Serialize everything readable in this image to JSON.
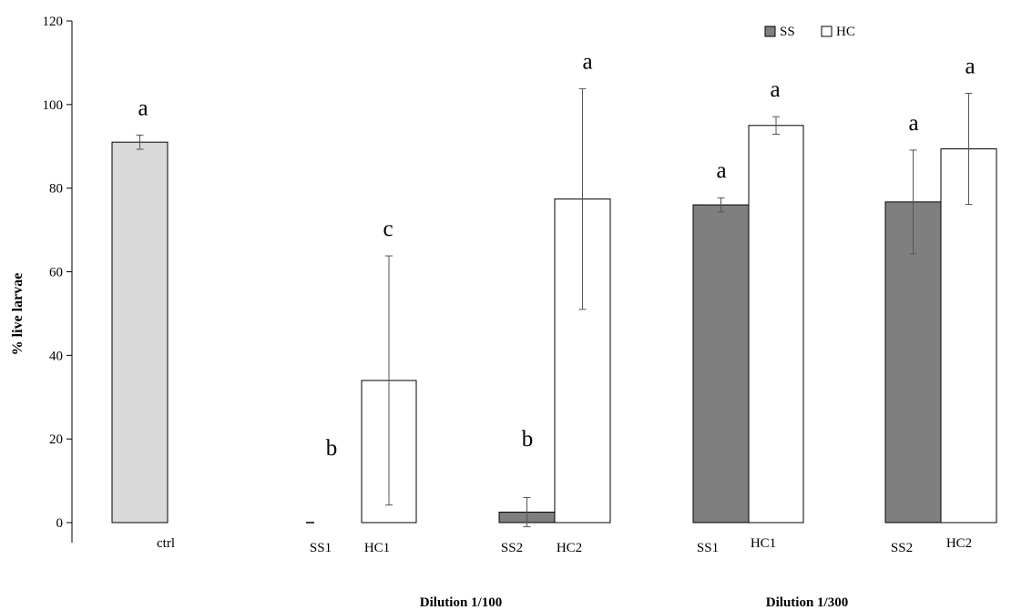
{
  "chart_data": {
    "type": "bar",
    "ylabel": "% live larvae",
    "ylim": [
      0,
      120
    ],
    "yticks": [
      0,
      20,
      40,
      60,
      80,
      100,
      120
    ],
    "legend": {
      "placement": "top-right",
      "entries": [
        {
          "name": "SS",
          "color": "#7f7f7f"
        },
        {
          "name": "HC",
          "color": "#ffffff"
        }
      ]
    },
    "bars": [
      {
        "label": "ctrl",
        "series": "ctrl",
        "value": 91,
        "err": 1.7,
        "letter": "a",
        "color": "#d9d9d9"
      },
      {
        "label": "SS1",
        "series": "SS",
        "value": 0,
        "err": 0,
        "letter": "b",
        "color": "#7f7f7f"
      },
      {
        "label": "HC1",
        "series": "HC",
        "value": 34,
        "err": 29.8,
        "letter": "c",
        "color": "#ffffff"
      },
      {
        "label": "SS2",
        "series": "SS",
        "value": 2.5,
        "err": 3.5,
        "letter": "b",
        "color": "#7f7f7f"
      },
      {
        "label": "HC2",
        "series": "HC",
        "value": 77.4,
        "err": 26.4,
        "letter": "a",
        "color": "#ffffff"
      },
      {
        "label": "SS1",
        "series": "SS",
        "value": 76,
        "err": 1.7,
        "letter": "a",
        "color": "#7f7f7f"
      },
      {
        "label": "HC1",
        "series": "HC",
        "value": 95,
        "err": 2.1,
        "letter": "a",
        "color": "#ffffff"
      },
      {
        "label": "SS2",
        "series": "SS",
        "value": 76.7,
        "err": 12.4,
        "letter": "a",
        "color": "#7f7f7f"
      },
      {
        "label": "HC2",
        "series": "HC",
        "value": 89.4,
        "err": 13.3,
        "letter": "a",
        "color": "#ffffff"
      }
    ],
    "groups": [
      {
        "label": "Dilution 1/100"
      },
      {
        "label": "Dilution 1/300"
      }
    ]
  }
}
